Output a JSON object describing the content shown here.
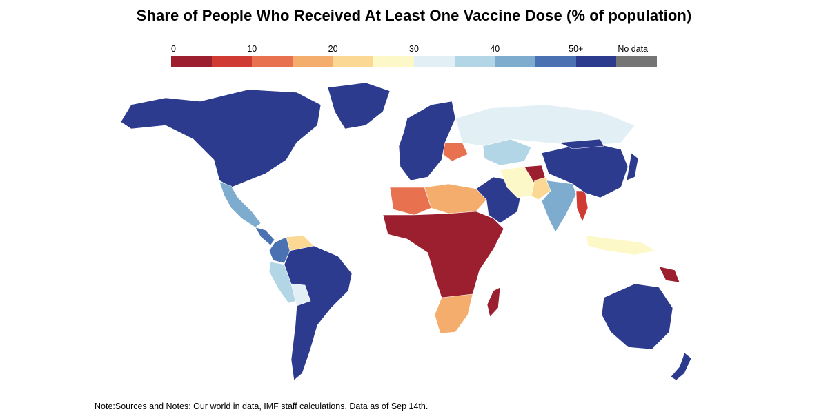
{
  "title": "Share of People Who Received At Least One Vaccine Dose (% of population)",
  "legend": {
    "labels": [
      {
        "text": "0",
        "bin": 0
      },
      {
        "text": "10",
        "bin": 2
      },
      {
        "text": "20",
        "bin": 4
      },
      {
        "text": "30",
        "bin": 6
      },
      {
        "text": "40",
        "bin": 8
      },
      {
        "text": "50+",
        "bin": 10
      },
      {
        "text": "No data",
        "bin": 11
      }
    ],
    "bins": [
      {
        "range": "0-5",
        "color": "#9b1f2e"
      },
      {
        "range": "5-10",
        "color": "#cf3b32"
      },
      {
        "range": "10-15",
        "color": "#e8714f"
      },
      {
        "range": "15-20",
        "color": "#f4ad6c"
      },
      {
        "range": "20-25",
        "color": "#fbd995"
      },
      {
        "range": "25-30",
        "color": "#fdf8c7"
      },
      {
        "range": "30-35",
        "color": "#e2f0f5"
      },
      {
        "range": "35-40",
        "color": "#b2d6e5"
      },
      {
        "range": "40-45",
        "color": "#7eacce"
      },
      {
        "range": "45-50",
        "color": "#4a72b2"
      },
      {
        "range": "50+",
        "color": "#2d3b8e"
      },
      {
        "range": "No data",
        "color": "#757575"
      }
    ]
  },
  "regions": [
    {
      "name": "North America",
      "color": "#2d3b8e"
    },
    {
      "name": "Mexico",
      "color": "#7eacce"
    },
    {
      "name": "Central America",
      "color": "#4a72b2"
    },
    {
      "name": "Venezuela",
      "color": "#fbd995"
    },
    {
      "name": "Colombia",
      "color": "#4a72b2"
    },
    {
      "name": "Peru",
      "color": "#b2d6e5"
    },
    {
      "name": "Bolivia",
      "color": "#e2f0f5"
    },
    {
      "name": "South America",
      "color": "#2d3b8e"
    },
    {
      "name": "Greenland",
      "color": "#2d3b8e"
    },
    {
      "name": "Europe",
      "color": "#2d3b8e"
    },
    {
      "name": "Russia",
      "color": "#e2f0f5"
    },
    {
      "name": "Kazakhstan",
      "color": "#b2d6e5"
    },
    {
      "name": "Ukraine",
      "color": "#e8714f"
    },
    {
      "name": "North Africa",
      "color": "#f4ad6c"
    },
    {
      "name": "Algeria",
      "color": "#e8714f"
    },
    {
      "name": "Sub-Saharan Africa",
      "color": "#9b1f2e"
    },
    {
      "name": "Southern Africa",
      "color": "#f4ad6c"
    },
    {
      "name": "Madagascar",
      "color": "#9b1f2e"
    },
    {
      "name": "Middle East",
      "color": "#2d3b8e"
    },
    {
      "name": "Iran",
      "color": "#fdf8c7"
    },
    {
      "name": "Afghanistan",
      "color": "#9b1f2e"
    },
    {
      "name": "Pakistan",
      "color": "#fbd995"
    },
    {
      "name": "India",
      "color": "#7eacce"
    },
    {
      "name": "Myanmar",
      "color": "#cf3b32"
    },
    {
      "name": "China",
      "color": "#2d3b8e"
    },
    {
      "name": "Mongolia",
      "color": "#2d3b8e"
    },
    {
      "name": "Japan",
      "color": "#2d3b8e"
    },
    {
      "name": "Indonesia",
      "color": "#fdf8c7"
    },
    {
      "name": "Papua New Guinea",
      "color": "#9b1f2e"
    },
    {
      "name": "Australia",
      "color": "#2d3b8e"
    },
    {
      "name": "New Zealand",
      "color": "#2d3b8e"
    }
  ],
  "note": "Note:Sources and Notes: Our world in data, IMF staff calculations. Data as of Sep 14th."
}
